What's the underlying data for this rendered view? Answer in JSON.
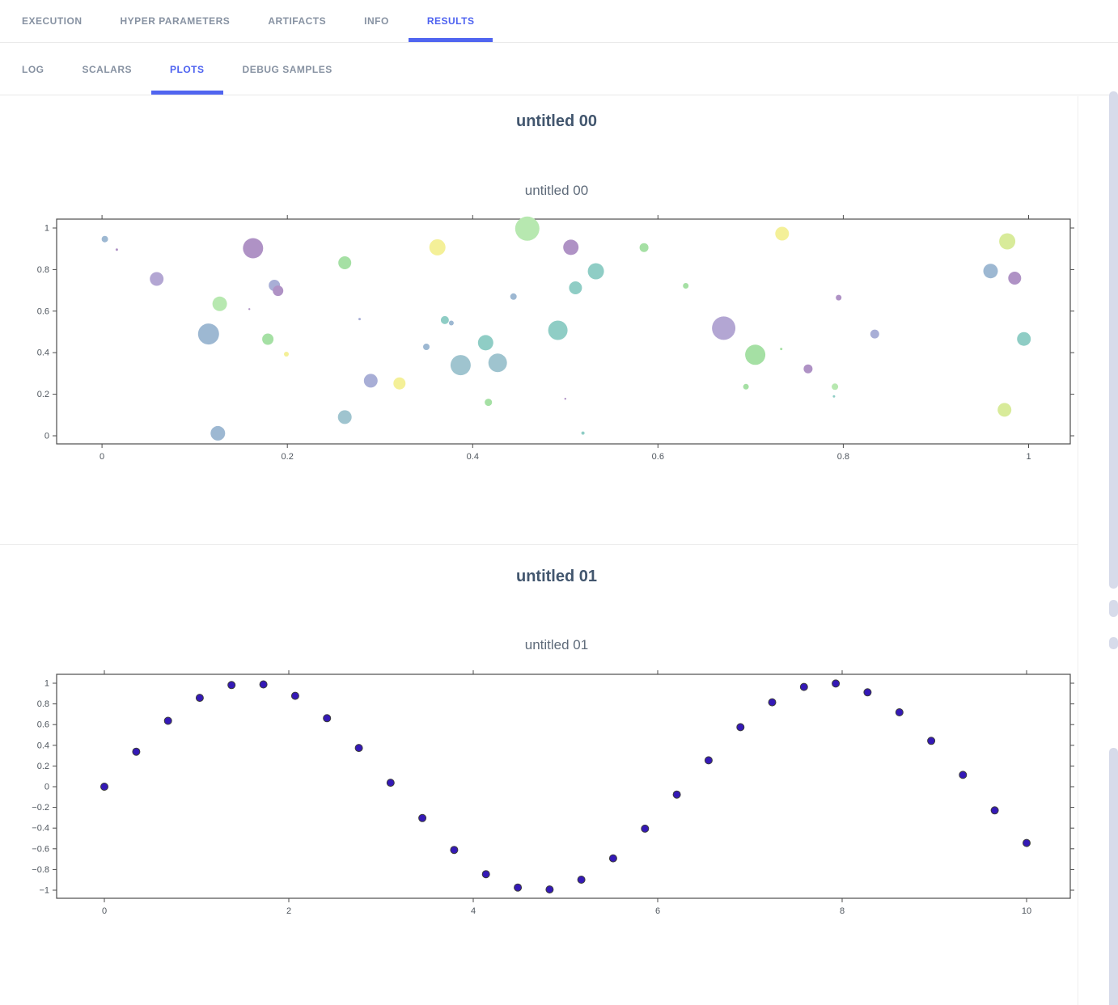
{
  "tab_bar": {
    "main_tabs": [
      {
        "label": "EXECUTION",
        "active": false
      },
      {
        "label": "HYPER PARAMETERS",
        "active": false
      },
      {
        "label": "ARTIFACTS",
        "active": false
      },
      {
        "label": "INFO",
        "active": false
      },
      {
        "label": "RESULTS",
        "active": true
      }
    ],
    "sub_tabs": [
      {
        "label": "LOG",
        "active": false
      },
      {
        "label": "SCALARS",
        "active": false
      },
      {
        "label": "PLOTS",
        "active": true
      },
      {
        "label": "DEBUG SAMPLES",
        "active": false
      }
    ]
  },
  "panels": [
    {
      "header": "untitled 00"
    },
    {
      "header": "untitled 01"
    }
  ],
  "colors": {
    "accent_blue": "#5065f0",
    "tab_inactive": "#8792a2",
    "panel_header_text": "#42566e",
    "chart_title_text": "#5f6b7a",
    "axis_frame": "#4c4c4c",
    "tick_label": "#4f565e",
    "scrollbar_thumb": "#d7dbea",
    "palette": {
      "steel": "#9db8d2",
      "cadet": "#9fc4cf",
      "teal": "#8fcdc5",
      "green": "#a5e0a4",
      "lightgreen": "#b7e8b0",
      "yellowgreen": "#d8eb9a",
      "yellow": "#f4f098",
      "lavender": "#a8aed6",
      "violet": "#b3a6d3",
      "purple": "#af92c5"
    }
  },
  "chart_data": [
    {
      "type": "scatter",
      "variant": "bubble",
      "title": "untitled 00",
      "xlabel": "",
      "ylabel": "",
      "grid": false,
      "legend": "none",
      "xlim": [
        -0.049,
        1.045
      ],
      "ylim": [
        -0.039,
        1.043
      ],
      "xticks": [
        0,
        0.2,
        0.4,
        0.6,
        0.8,
        1
      ],
      "xtick_labels": [
        "0",
        "0.2",
        "0.4",
        "0.6",
        "0.8",
        "1"
      ],
      "yticks": [
        0,
        0.2,
        0.4,
        0.6,
        0.8,
        1
      ],
      "ytick_labels": [
        "0",
        "0.2",
        "0.4",
        "0.6",
        "0.8",
        "1"
      ],
      "points_format": [
        "x",
        "y",
        "radius_px",
        "color_key"
      ],
      "points": [
        [
          0.003,
          0.947,
          4,
          "steel"
        ],
        [
          0.016,
          0.896,
          1.5,
          "purple"
        ],
        [
          0.059,
          0.755,
          8.5,
          "violet"
        ],
        [
          0.127,
          0.635,
          9,
          "lightgreen"
        ],
        [
          0.115,
          0.49,
          13,
          "steel"
        ],
        [
          0.163,
          0.903,
          12.5,
          "purple"
        ],
        [
          0.186,
          0.724,
          7,
          "lavender"
        ],
        [
          0.19,
          0.698,
          6.5,
          "purple"
        ],
        [
          0.159,
          0.61,
          1.2,
          "purple"
        ],
        [
          0.262,
          0.833,
          8,
          "green"
        ],
        [
          0.179,
          0.465,
          7,
          "green"
        ],
        [
          0.199,
          0.393,
          3,
          "yellow"
        ],
        [
          0.278,
          0.562,
          1.5,
          "lavender"
        ],
        [
          0.29,
          0.265,
          8.5,
          "lavender"
        ],
        [
          0.321,
          0.252,
          7.5,
          "yellow"
        ],
        [
          0.262,
          0.09,
          8.5,
          "cadet"
        ],
        [
          0.125,
          0.012,
          9,
          "steel"
        ],
        [
          0.362,
          0.907,
          10,
          "yellow"
        ],
        [
          0.459,
          0.997,
          15,
          "lightgreen"
        ],
        [
          0.506,
          0.907,
          9.5,
          "purple"
        ],
        [
          0.533,
          0.792,
          10,
          "teal"
        ],
        [
          0.511,
          0.712,
          8,
          "teal"
        ],
        [
          0.585,
          0.906,
          5.5,
          "green"
        ],
        [
          0.63,
          0.722,
          3.5,
          "green"
        ],
        [
          0.444,
          0.67,
          4,
          "steel"
        ],
        [
          0.37,
          0.557,
          5,
          "teal"
        ],
        [
          0.377,
          0.543,
          3,
          "steel"
        ],
        [
          0.35,
          0.428,
          4,
          "steel"
        ],
        [
          0.414,
          0.448,
          9.5,
          "teal"
        ],
        [
          0.492,
          0.508,
          12,
          "teal"
        ],
        [
          0.387,
          0.34,
          12.5,
          "cadet"
        ],
        [
          0.427,
          0.351,
          11.5,
          "cadet"
        ],
        [
          0.417,
          0.161,
          4.5,
          "green"
        ],
        [
          0.5,
          0.178,
          1.2,
          "purple"
        ],
        [
          0.519,
          0.013,
          2,
          "teal"
        ],
        [
          0.671,
          0.518,
          14.5,
          "violet"
        ],
        [
          0.705,
          0.39,
          12.5,
          "green"
        ],
        [
          0.733,
          0.418,
          1.5,
          "green"
        ],
        [
          0.695,
          0.236,
          3.5,
          "green"
        ],
        [
          0.734,
          0.973,
          8.5,
          "yellow"
        ],
        [
          0.795,
          0.665,
          3.5,
          "purple"
        ],
        [
          0.762,
          0.322,
          5.5,
          "purple"
        ],
        [
          0.791,
          0.236,
          4,
          "lightgreen"
        ],
        [
          0.79,
          0.19,
          1.5,
          "teal"
        ],
        [
          0.834,
          0.49,
          5.5,
          "lavender"
        ],
        [
          0.959,
          0.793,
          9,
          "steel"
        ],
        [
          0.985,
          0.759,
          8,
          "purple"
        ],
        [
          0.977,
          0.936,
          10,
          "yellowgreen"
        ],
        [
          0.995,
          0.466,
          8.5,
          "teal"
        ],
        [
          0.974,
          0.125,
          8.5,
          "yellowgreen"
        ]
      ]
    },
    {
      "type": "scatter",
      "title": "untitled 01",
      "xlabel": "",
      "ylabel": "",
      "grid": false,
      "legend": "none",
      "marker": {
        "fill": "#3419b6",
        "edge": "#3c3c3c",
        "radius": 4.5
      },
      "xlim": [
        -0.518,
        10.474
      ],
      "ylim": [
        -1.078,
        1.086
      ],
      "xticks": [
        0,
        2,
        4,
        6,
        8,
        10
      ],
      "xtick_labels": [
        "0",
        "2",
        "4",
        "6",
        "8",
        "10"
      ],
      "yticks": [
        -1,
        -0.8,
        -0.6,
        -0.4,
        -0.2,
        0,
        0.2,
        0.4,
        0.6,
        0.8,
        1
      ],
      "ytick_labels": [
        "−1",
        "−0.8",
        "−0.6",
        "−0.4",
        "−0.2",
        "0",
        "0.2",
        "0.4",
        "0.6",
        "0.8",
        "1"
      ],
      "x": [
        0,
        0.345,
        0.69,
        1.034,
        1.379,
        1.724,
        2.069,
        2.414,
        2.759,
        3.103,
        3.448,
        3.793,
        4.138,
        4.483,
        4.828,
        5.172,
        5.517,
        5.862,
        6.207,
        6.552,
        6.897,
        7.241,
        7.586,
        7.931,
        8.276,
        8.621,
        8.966,
        9.31,
        9.655,
        10
      ],
      "y": [
        0,
        0.338,
        0.637,
        0.859,
        0.982,
        0.988,
        0.878,
        0.662,
        0.374,
        0.038,
        -0.303,
        -0.611,
        -0.845,
        -0.974,
        -0.993,
        -0.898,
        -0.692,
        -0.405,
        -0.076,
        0.255,
        0.575,
        0.816,
        0.964,
        0.997,
        0.912,
        0.719,
        0.443,
        0.114,
        -0.229,
        -0.544
      ]
    }
  ]
}
